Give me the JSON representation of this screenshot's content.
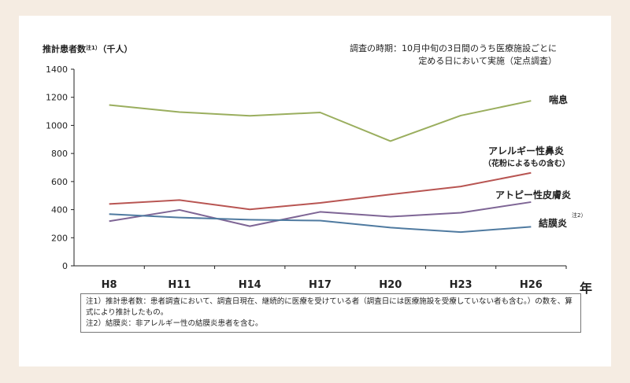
{
  "chart_data": {
    "type": "line",
    "ylabel": "推計患者数",
    "ylabel_note": "注1）",
    "ylabel_unit": "（千人）",
    "xlabel": "年",
    "categories": [
      "H8",
      "H11",
      "H14",
      "H17",
      "H20",
      "H23",
      "H26"
    ],
    "ylim": [
      0,
      1400
    ],
    "yticks": [
      "0",
      "200",
      "400",
      "600",
      "800",
      "1000",
      "1200",
      "1400"
    ],
    "grid": false,
    "legend": "inline-right",
    "annotation": {
      "line1": "調査の時期：10月中旬の3日間のうち医療施設ごとに",
      "line2": "定める日において実施（定点調査）"
    },
    "series": [
      {
        "name": "喘息",
        "color": "#9aae5e",
        "values": [
          1145,
          1095,
          1068,
          1092,
          888,
          1070,
          1175
        ]
      },
      {
        "name": "アレルギー性鼻炎",
        "sub": "（花粉によるもの含む）",
        "color": "#b85552",
        "values": [
          440,
          468,
          402,
          448,
          508,
          565,
          662
        ]
      },
      {
        "name": "アトピー性皮膚炎",
        "color": "#7e6595",
        "values": [
          318,
          398,
          282,
          384,
          350,
          378,
          454
        ]
      },
      {
        "name": "結膜炎",
        "note": "注2）",
        "color": "#4f7aa0",
        "values": [
          368,
          344,
          328,
          322,
          272,
          240,
          278
        ]
      }
    ]
  },
  "notes": [
    "注1）推計患者数：患者調査において、調査日現在、継続的に医療を受けている者（調査日には医療施設を受療していない者も含む。）の数を、算式により推計したもの。",
    "注2）結膜炎：非アレルギー性の結膜炎患者を含む。"
  ],
  "colors": {
    "background": "#f5ece2",
    "panel": "#ffffff",
    "axis": "#222222"
  }
}
